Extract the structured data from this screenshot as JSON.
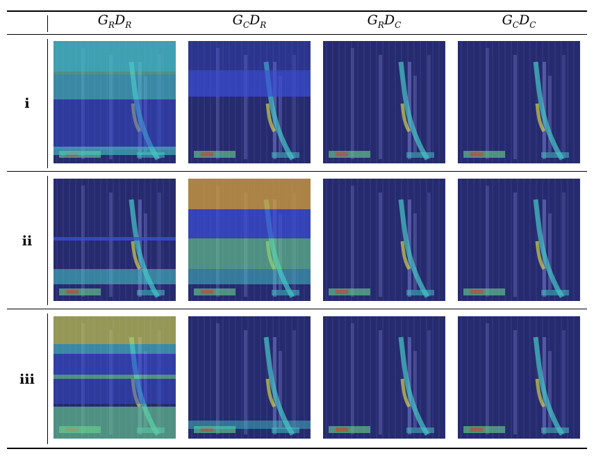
{
  "columns": [
    {
      "g": "G",
      "g_sub": "R",
      "d": "D",
      "d_sub": "R"
    },
    {
      "g": "G",
      "g_sub": "C",
      "d": "D",
      "d_sub": "R"
    },
    {
      "g": "G",
      "g_sub": "R",
      "d": "D",
      "d_sub": "C"
    },
    {
      "g": "G",
      "g_sub": "C",
      "d": "D",
      "d_sub": "C"
    }
  ],
  "rows": [
    {
      "label": "i"
    },
    {
      "label": "ii"
    },
    {
      "label": "iii"
    }
  ],
  "colors": {
    "base": "#262a6e",
    "blue": "#3a4fd6",
    "cyan": "#47c8c8",
    "green": "#6ad690",
    "yellow": "#cfd24a",
    "orange": "#d9a23a",
    "red": "#d83a2a"
  }
}
